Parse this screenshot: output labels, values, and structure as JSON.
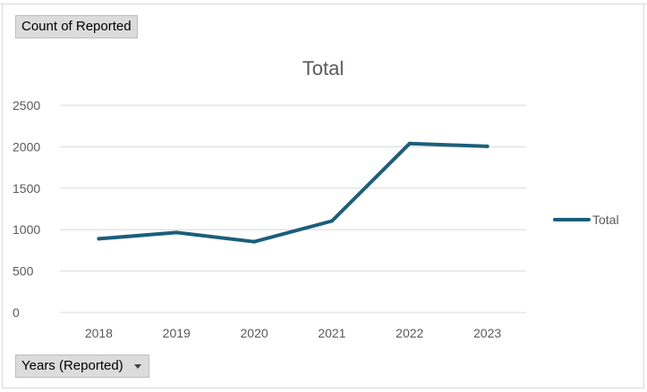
{
  "pivot": {
    "value_field_label": "Count of Reported",
    "axis_field_label": "Years (Reported)",
    "axis_dropdown_icon": "chevron-down-icon"
  },
  "colors": {
    "series": "#1b5e7b",
    "gridline": "#d9d9d9",
    "text": "#595959"
  },
  "chart_data": {
    "type": "line",
    "title": "Total",
    "xlabel": "",
    "ylabel": "",
    "categories": [
      "2018",
      "2019",
      "2020",
      "2021",
      "2022",
      "2023"
    ],
    "ylim": [
      0,
      2500
    ],
    "yticks": [
      0,
      500,
      1000,
      1500,
      2000,
      2500
    ],
    "grid": true,
    "legend_position": "right",
    "series": [
      {
        "name": "Total",
        "values": [
          890,
          965,
          855,
          1105,
          2040,
          2005
        ]
      }
    ]
  }
}
